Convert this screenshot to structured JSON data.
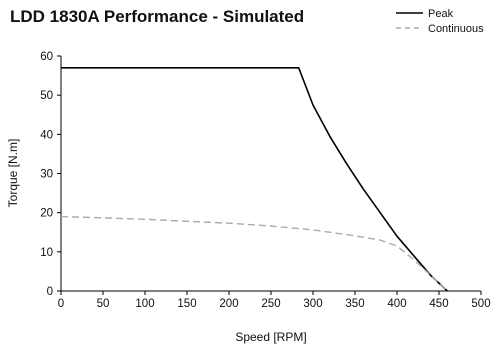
{
  "chart_data": {
    "type": "line",
    "title": "LDD 1830A Performance - Simulated",
    "xlabel": "Speed [RPM]",
    "ylabel": "Torque [N.m]",
    "xlim": [
      0,
      500
    ],
    "ylim": [
      0,
      60
    ],
    "xticks": [
      0,
      50,
      100,
      150,
      200,
      250,
      300,
      350,
      400,
      450,
      500
    ],
    "yticks": [
      0,
      10,
      20,
      30,
      40,
      50,
      60
    ],
    "grid": false,
    "legend": "top-right",
    "series": [
      {
        "name": "Peak",
        "color": "#000000",
        "style": "solid",
        "x": [
          0,
          280,
          283,
          300,
          320,
          340,
          360,
          380,
          400,
          420,
          440,
          460
        ],
        "y": [
          57,
          57,
          57,
          47.5,
          39.5,
          32.5,
          26,
          20,
          14,
          9,
          4,
          0
        ]
      },
      {
        "name": "Continuous",
        "color": "#aaaaaa",
        "style": "dashed",
        "x": [
          0,
          50,
          100,
          150,
          200,
          250,
          300,
          350,
          380,
          400,
          420,
          440,
          460
        ],
        "y": [
          19,
          18.7,
          18.3,
          17.8,
          17.3,
          16.6,
          15.6,
          14.1,
          13,
          11.5,
          8,
          4,
          0
        ]
      }
    ]
  }
}
